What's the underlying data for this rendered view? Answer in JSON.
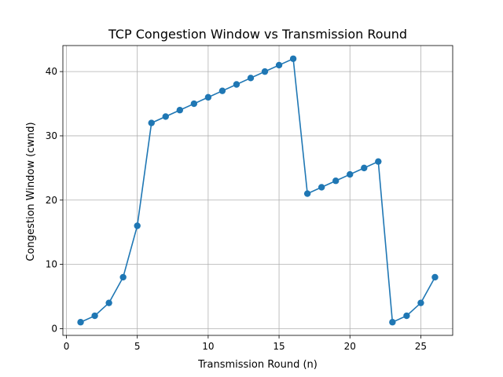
{
  "chart_data": {
    "type": "line",
    "title": "TCP Congestion Window vs Transmission Round",
    "xlabel": "Transmission Round (n)",
    "ylabel": "Congestion Window (cwnd)",
    "xlim": [
      -0.25,
      27.25
    ],
    "ylim": [
      -1.05,
      44.05
    ],
    "xticks": [
      0,
      5,
      10,
      15,
      20,
      25
    ],
    "yticks": [
      0,
      10,
      20,
      30,
      40
    ],
    "grid": true,
    "series": [
      {
        "color": "#1f77b4",
        "marker": "circle",
        "x": [
          1,
          2,
          3,
          4,
          5,
          6,
          7,
          8,
          9,
          10,
          11,
          12,
          13,
          14,
          15,
          16,
          17,
          18,
          19,
          20,
          21,
          22,
          23,
          24,
          25,
          26
        ],
        "y": [
          1,
          2,
          4,
          8,
          16,
          32,
          33,
          34,
          35,
          36,
          37,
          38,
          39,
          40,
          41,
          42,
          21,
          22,
          23,
          24,
          25,
          26,
          1,
          2,
          4,
          8
        ]
      }
    ]
  }
}
